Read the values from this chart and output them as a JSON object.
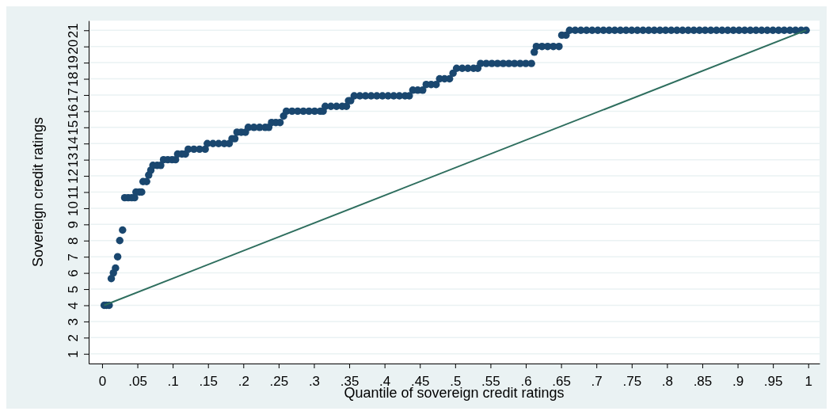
{
  "chart_data": {
    "type": "scatter",
    "xlabel": "Quantile of sovereign credit ratings",
    "ylabel": "Sovereign credit ratings",
    "xlim": [
      -0.019,
      1.016
    ],
    "ylim": [
      0.4,
      21.6
    ],
    "xticks": [
      0,
      {
        "value": 0.05,
        "label": ".05"
      },
      {
        "value": 0.1,
        "label": ".1"
      },
      {
        "value": 0.15,
        "label": ".15"
      },
      {
        "value": 0.2,
        "label": ".2"
      },
      {
        "value": 0.25,
        "label": ".25"
      },
      {
        "value": 0.3,
        "label": ".3"
      },
      {
        "value": 0.35,
        "label": ".35"
      },
      {
        "value": 0.4,
        "label": ".4"
      },
      {
        "value": 0.45,
        "label": ".45"
      },
      {
        "value": 0.5,
        "label": ".5"
      },
      {
        "value": 0.55,
        "label": ".55"
      },
      {
        "value": 0.6,
        "label": ".6"
      },
      {
        "value": 0.65,
        "label": ".65"
      },
      {
        "value": 0.7,
        "label": ".7"
      },
      {
        "value": 0.75,
        "label": ".75"
      },
      {
        "value": 0.8,
        "label": ".8"
      },
      {
        "value": 0.85,
        "label": ".85"
      },
      {
        "value": 0.9,
        "label": ".9"
      },
      {
        "value": 0.95,
        "label": ".95"
      },
      1
    ],
    "yticks": [
      1,
      2,
      3,
      4,
      5,
      6,
      7,
      8,
      9,
      10,
      11,
      12,
      13,
      14,
      15,
      16,
      17,
      18,
      19,
      20,
      21
    ],
    "grid": "y",
    "series": [
      {
        "color": "#1a476f",
        "marker": "circle",
        "x": [
          0.003,
          0.006,
          0.01,
          0.013,
          0.016,
          0.019,
          0.022,
          0.025,
          0.029,
          0.032,
          0.037,
          0.042,
          0.046,
          0.048,
          0.053,
          0.056,
          0.058,
          0.063,
          0.066,
          0.069,
          0.072,
          0.078,
          0.083,
          0.087,
          0.093,
          0.099,
          0.104,
          0.107,
          0.113,
          0.118,
          0.122,
          0.13,
          0.138,
          0.146,
          0.149,
          0.157,
          0.165,
          0.173,
          0.18,
          0.184,
          0.188,
          0.191,
          0.197,
          0.203,
          0.207,
          0.215,
          0.223,
          0.231,
          0.236,
          0.24,
          0.246,
          0.252,
          0.257,
          0.261,
          0.269,
          0.277,
          0.285,
          0.293,
          0.301,
          0.309,
          0.313,
          0.316,
          0.324,
          0.332,
          0.34,
          0.346,
          0.349,
          0.352,
          0.357,
          0.365,
          0.373,
          0.381,
          0.389,
          0.397,
          0.405,
          0.413,
          0.421,
          0.429,
          0.435,
          0.44,
          0.447,
          0.454,
          0.459,
          0.466,
          0.473,
          0.478,
          0.485,
          0.492,
          0.497,
          0.502,
          0.51,
          0.518,
          0.526,
          0.532,
          0.536,
          0.544,
          0.552,
          0.56,
          0.568,
          0.576,
          0.584,
          0.592,
          0.6,
          0.608,
          0.612,
          0.615,
          0.623,
          0.631,
          0.639,
          0.647,
          0.651,
          0.657,
          0.662,
          0.67,
          0.678,
          0.686,
          0.694,
          0.702,
          0.71,
          0.718,
          0.726,
          0.734,
          0.742,
          0.75,
          0.758,
          0.766,
          0.774,
          0.782,
          0.79,
          0.798,
          0.806,
          0.814,
          0.822,
          0.83,
          0.838,
          0.846,
          0.854,
          0.862,
          0.87,
          0.878,
          0.886,
          0.894,
          0.902,
          0.91,
          0.918,
          0.926,
          0.934,
          0.942,
          0.95,
          0.958,
          0.966,
          0.974,
          0.982,
          0.99,
          0.997
        ],
        "values": [
          4,
          4,
          4,
          5.65,
          6,
          6.3,
          7,
          8,
          8.65,
          10.65,
          10.65,
          10.65,
          10.65,
          11,
          11,
          11,
          11.65,
          11.65,
          12.05,
          12.35,
          12.65,
          12.65,
          12.65,
          13,
          13,
          13,
          13,
          13.35,
          13.35,
          13.35,
          13.65,
          13.65,
          13.65,
          13.65,
          14,
          14,
          14,
          14,
          14,
          14.3,
          14.3,
          14.7,
          14.7,
          14.7,
          15,
          15,
          15,
          15,
          15,
          15.3,
          15.3,
          15.3,
          15.7,
          16,
          16,
          16,
          16,
          16,
          16,
          16,
          16,
          16.3,
          16.3,
          16.3,
          16.3,
          16.3,
          16.65,
          16.65,
          16.95,
          16.95,
          16.95,
          16.95,
          16.95,
          16.95,
          16.95,
          16.95,
          16.95,
          16.95,
          16.95,
          17.3,
          17.3,
          17.3,
          17.65,
          17.65,
          17.65,
          18,
          18,
          18,
          18.35,
          18.65,
          18.65,
          18.65,
          18.65,
          18.65,
          18.95,
          18.95,
          18.95,
          18.95,
          18.95,
          18.95,
          18.95,
          18.95,
          18.95,
          18.95,
          19.65,
          20,
          20,
          20,
          20,
          20,
          20.7,
          20.7,
          21,
          21,
          21,
          21,
          21,
          21,
          21,
          21,
          21,
          21,
          21,
          21,
          21,
          21,
          21,
          21,
          21,
          21,
          21,
          21,
          21,
          21,
          21,
          21,
          21,
          21,
          21,
          21,
          21,
          21,
          21,
          21,
          21,
          21,
          21,
          21,
          21,
          21,
          21,
          21,
          21,
          21,
          21
        ]
      },
      {
        "type": "line",
        "color": "#2e6e5e",
        "marker": "none",
        "x": [
          0.003,
          0.997
        ],
        "values": [
          4,
          21
        ]
      }
    ]
  }
}
